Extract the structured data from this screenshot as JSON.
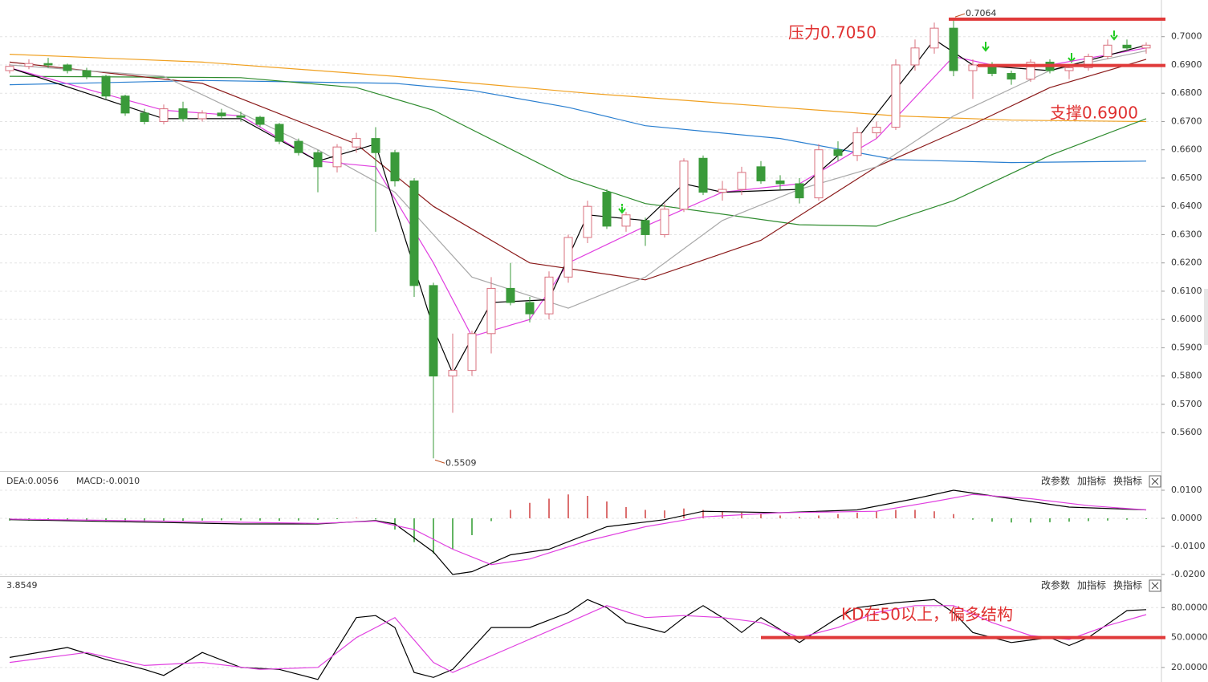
{
  "chart_data": [
    {
      "type": "candlestick",
      "open": [
        0.688,
        0.6895,
        0.6905,
        0.69,
        0.688,
        0.686,
        0.679,
        0.673,
        0.67,
        0.6745,
        0.671,
        0.673,
        0.672,
        0.6715,
        0.669,
        0.663,
        0.659,
        0.654,
        0.661,
        0.664,
        0.659,
        0.649,
        0.612,
        0.58,
        0.582,
        0.595,
        0.611,
        0.606,
        0.602,
        0.615,
        0.629,
        0.645,
        0.633,
        0.635,
        0.63,
        0.639,
        0.657,
        0.645,
        0.646,
        0.654,
        0.649,
        0.648,
        0.643,
        0.66,
        0.658,
        0.666,
        0.668,
        0.69,
        0.696,
        0.703,
        0.688,
        0.69,
        0.687,
        0.685,
        0.691,
        0.688,
        0.689,
        0.693,
        0.697,
        0.696
      ],
      "high": [
        0.6905,
        0.692,
        0.6925,
        0.6905,
        0.689,
        0.6865,
        0.6795,
        0.6745,
        0.676,
        0.677,
        0.674,
        0.6745,
        0.6735,
        0.672,
        0.6695,
        0.664,
        0.66,
        0.662,
        0.666,
        0.668,
        0.66,
        0.65,
        0.613,
        0.595,
        0.596,
        0.615,
        0.62,
        0.608,
        0.617,
        0.63,
        0.642,
        0.646,
        0.638,
        0.636,
        0.641,
        0.657,
        0.658,
        0.649,
        0.654,
        0.656,
        0.651,
        0.65,
        0.662,
        0.663,
        0.668,
        0.67,
        0.692,
        0.699,
        0.705,
        0.7064,
        0.692,
        0.691,
        0.688,
        0.692,
        0.692,
        0.69,
        0.694,
        0.699,
        0.699,
        0.698
      ],
      "low": [
        0.687,
        0.6885,
        0.689,
        0.687,
        0.685,
        0.678,
        0.672,
        0.669,
        0.669,
        0.67,
        0.67,
        0.671,
        0.67,
        0.668,
        0.662,
        0.658,
        0.645,
        0.652,
        0.659,
        0.631,
        0.647,
        0.608,
        0.5509,
        0.567,
        0.58,
        0.588,
        0.605,
        0.599,
        0.6,
        0.613,
        0.627,
        0.632,
        0.631,
        0.626,
        0.629,
        0.638,
        0.644,
        0.642,
        0.644,
        0.648,
        0.646,
        0.641,
        0.642,
        0.656,
        0.656,
        0.664,
        0.667,
        0.688,
        0.694,
        0.686,
        0.678,
        0.686,
        0.683,
        0.684,
        0.687,
        0.685,
        0.688,
        0.692,
        0.695,
        0.694
      ],
      "close": [
        0.6895,
        0.6905,
        0.69,
        0.688,
        0.686,
        0.679,
        0.673,
        0.67,
        0.6745,
        0.671,
        0.673,
        0.672,
        0.6715,
        0.669,
        0.663,
        0.659,
        0.654,
        0.661,
        0.664,
        0.659,
        0.649,
        0.612,
        0.58,
        0.582,
        0.595,
        0.611,
        0.606,
        0.602,
        0.615,
        0.629,
        0.64,
        0.633,
        0.637,
        0.63,
        0.639,
        0.656,
        0.645,
        0.646,
        0.652,
        0.649,
        0.648,
        0.643,
        0.66,
        0.658,
        0.666,
        0.668,
        0.69,
        0.696,
        0.703,
        0.688,
        0.69,
        0.687,
        0.685,
        0.691,
        0.688,
        0.689,
        0.693,
        0.697,
        0.696,
        0.697
      ],
      "up_color": "#d9707e",
      "down_color": "#3a9a3a",
      "ylim": [
        0.547,
        0.7124
      ],
      "yticks": [
        {
          "value": 0.56,
          "label": "0.5600"
        },
        {
          "value": 0.57,
          "label": "0.5700"
        },
        {
          "value": 0.58,
          "label": "0.5800"
        },
        {
          "value": 0.59,
          "label": "0.5900"
        },
        {
          "value": 0.6,
          "label": "0.6000"
        },
        {
          "value": 0.61,
          "label": "0.6100"
        },
        {
          "value": 0.62,
          "label": "0.6200"
        },
        {
          "value": 0.63,
          "label": "0.6300"
        },
        {
          "value": 0.64,
          "label": "0.6400"
        },
        {
          "value": 0.65,
          "label": "0.6500"
        },
        {
          "value": 0.66,
          "label": "0.6600"
        },
        {
          "value": 0.67,
          "label": "0.6700"
        },
        {
          "value": 0.68,
          "label": "0.6800"
        },
        {
          "value": 0.69,
          "label": "0.6900"
        },
        {
          "value": 0.7,
          "label": "0.7000"
        }
      ],
      "grid": true,
      "series": [
        {
          "color": "#f0a020",
          "x": [
            0,
            10,
            20,
            30,
            40,
            46,
            52,
            59
          ],
          "values": [
            0.6938,
            0.691,
            0.686,
            0.68,
            0.675,
            0.672,
            0.6705,
            0.67
          ]
        },
        {
          "color": "#2a7fd0",
          "x": [
            0,
            10,
            20,
            24,
            29,
            33,
            40,
            46,
            52,
            59
          ],
          "values": [
            0.683,
            0.6845,
            0.6835,
            0.681,
            0.675,
            0.6685,
            0.664,
            0.6565,
            0.6555,
            0.656
          ]
        },
        {
          "color": "#2e8b2e",
          "x": [
            0,
            12,
            18,
            22,
            29,
            33,
            41,
            45,
            49,
            54,
            59
          ],
          "values": [
            0.686,
            0.6855,
            0.682,
            0.674,
            0.65,
            0.641,
            0.6335,
            0.633,
            0.642,
            0.658,
            0.671
          ]
        },
        {
          "color": "#8b1a1a",
          "x": [
            0,
            10,
            18,
            22,
            27,
            33,
            39,
            45,
            50,
            54,
            59
          ],
          "values": [
            0.691,
            0.6835,
            0.662,
            0.64,
            0.62,
            0.614,
            0.628,
            0.654,
            0.669,
            0.682,
            0.692
          ]
        },
        {
          "color": "#a8a8a8",
          "x": [
            0,
            8,
            16,
            20,
            24,
            29,
            33,
            37,
            41,
            45,
            49,
            54,
            59
          ],
          "values": [
            0.69,
            0.686,
            0.66,
            0.645,
            0.615,
            0.604,
            0.615,
            0.635,
            0.646,
            0.654,
            0.672,
            0.688,
            0.695
          ]
        },
        {
          "color": "#e040e0",
          "x": [
            0,
            8,
            12,
            16,
            19,
            22,
            24,
            27,
            29,
            33,
            37,
            41,
            45,
            49,
            51,
            54,
            59
          ],
          "values": [
            0.689,
            0.674,
            0.672,
            0.656,
            0.654,
            0.62,
            0.594,
            0.6,
            0.62,
            0.633,
            0.645,
            0.648,
            0.664,
            0.693,
            0.69,
            0.69,
            0.696
          ]
        },
        {
          "color": "#000000",
          "x": [
            0,
            8,
            12,
            16,
            19,
            20,
            22,
            23,
            25,
            28,
            30,
            33,
            35,
            37,
            41,
            44,
            47,
            48,
            50,
            54,
            59
          ],
          "values": [
            0.689,
            0.671,
            0.671,
            0.656,
            0.662,
            0.64,
            0.597,
            0.581,
            0.606,
            0.607,
            0.637,
            0.635,
            0.648,
            0.645,
            0.646,
            0.664,
            0.69,
            0.699,
            0.69,
            0.688,
            0.697
          ]
        }
      ],
      "annotations": [
        {
          "text": "压力0.7050",
          "level": 0.7062,
          "start": 48.75,
          "color": "#e03a3a"
        },
        {
          "text": "支撑0.6900",
          "level": 0.6898,
          "start": 50.25,
          "color": "#e03a3a"
        }
      ]
    },
    {
      "type": "macd",
      "indicators": [
        {
          "text": "DEA:0.0056",
          "color": "#d020d0"
        },
        {
          "text": "MACD:-0.0010",
          "color": "#555555"
        }
      ],
      "toolbar": [
        "改参数",
        "加指标",
        "换指标"
      ],
      "ylim": [
        -0.0203,
        0.016
      ],
      "yticks": [
        {
          "value": -0.02,
          "label": "-0.0200"
        },
        {
          "value": -0.01,
          "label": "-0.0100"
        },
        {
          "value": 0,
          "label": "0.0000"
        },
        {
          "value": 0.01,
          "label": "0.0100"
        }
      ],
      "grid": true,
      "up_color": "#d04040",
      "down_color": "#2e9a2e",
      "histogram": [
        -0.0008,
        -0.0008,
        -0.0007,
        -0.0008,
        -0.0009,
        -0.001,
        -0.0012,
        -0.0012,
        -0.001,
        -0.0009,
        -0.0008,
        -0.0007,
        -0.0007,
        -0.0008,
        -0.0009,
        -0.0008,
        -0.0006,
        -0.0003,
        0.0002,
        -0.0004,
        -0.004,
        -0.0085,
        -0.0125,
        -0.011,
        -0.006,
        -0.001,
        0.003,
        0.0055,
        0.007,
        0.0085,
        0.008,
        0.006,
        0.004,
        0.003,
        0.0028,
        0.0035,
        0.003,
        0.0025,
        0.002,
        0.0015,
        0.001,
        0.0005,
        0.001,
        0.0015,
        0.002,
        0.0025,
        0.003,
        0.003,
        0.0025,
        0.0015,
        -0.0005,
        -0.0012,
        -0.0015,
        -0.0015,
        -0.0014,
        -0.0012,
        -0.001,
        -0.0008,
        -0.0005,
        -0.0003
      ],
      "series": [
        {
          "color": "#000000",
          "x": [
            0,
            8,
            12,
            16,
            19,
            20,
            22,
            23,
            24,
            26,
            28,
            31,
            34,
            36,
            40,
            44,
            47,
            49,
            52,
            55,
            59
          ],
          "values": [
            -0.0005,
            -0.0015,
            -0.002,
            -0.002,
            -0.0008,
            -0.002,
            -0.012,
            -0.02,
            -0.019,
            -0.013,
            -0.011,
            -0.003,
            -0.0005,
            0.0025,
            0.002,
            0.003,
            0.007,
            0.01,
            0.007,
            0.004,
            0.003
          ]
        },
        {
          "color": "#e040e0",
          "x": [
            0,
            8,
            16,
            19,
            21,
            23,
            25,
            27,
            30,
            33,
            36,
            40,
            45,
            48,
            50,
            53,
            56,
            59
          ],
          "values": [
            -0.0003,
            -0.001,
            -0.0018,
            -0.001,
            -0.004,
            -0.011,
            -0.0165,
            -0.0145,
            -0.008,
            -0.003,
            0.0005,
            0.002,
            0.0025,
            0.006,
            0.0085,
            0.007,
            0.0045,
            0.003
          ]
        }
      ]
    },
    {
      "type": "kd",
      "indicators": [
        {
          "text": "3.8549",
          "color": "#d020d0"
        }
      ],
      "toolbar": [
        "改参数",
        "加指标",
        "换指标"
      ],
      "ylim": [
        7,
        110
      ],
      "yticks": [
        {
          "value": 20,
          "label": "20.0000"
        },
        {
          "value": 50,
          "label": "50.0000"
        },
        {
          "value": 80,
          "label": "80.0000"
        }
      ],
      "grid": true,
      "series": [
        {
          "color": "#000000",
          "x": [
            0,
            3,
            5,
            7,
            8,
            10,
            12,
            14,
            16,
            18,
            19,
            20,
            21,
            22,
            23,
            25,
            27,
            29,
            30,
            31,
            32,
            34,
            35,
            36,
            37,
            38,
            39,
            40,
            41,
            43,
            44,
            46,
            48,
            49,
            50,
            52,
            54,
            55,
            56,
            58,
            59
          ],
          "values": [
            30,
            40,
            28,
            18,
            12,
            35,
            20,
            18,
            8,
            70,
            72,
            60,
            15,
            10,
            18,
            60,
            60,
            75,
            88,
            80,
            65,
            55,
            70,
            82,
            70,
            55,
            70,
            58,
            45,
            70,
            80,
            85,
            88,
            75,
            55,
            45,
            50,
            42,
            50,
            77,
            78
          ]
        },
        {
          "color": "#e040e0",
          "x": [
            0,
            4,
            7,
            10,
            13,
            16,
            18,
            20,
            22,
            23,
            26,
            29,
            31,
            33,
            35,
            37,
            39,
            41,
            43,
            45,
            47,
            49,
            51,
            53,
            55,
            57,
            59
          ],
          "values": [
            25,
            35,
            22,
            25,
            18,
            20,
            50,
            70,
            25,
            15,
            40,
            65,
            82,
            70,
            72,
            70,
            65,
            50,
            60,
            75,
            82,
            82,
            65,
            52,
            48,
            62,
            73
          ]
        }
      ],
      "annotations": [
        {
          "text": "KD在50以上，偏多结构",
          "level": 50,
          "start": 39,
          "color": "#e03a3a"
        }
      ]
    }
  ]
}
